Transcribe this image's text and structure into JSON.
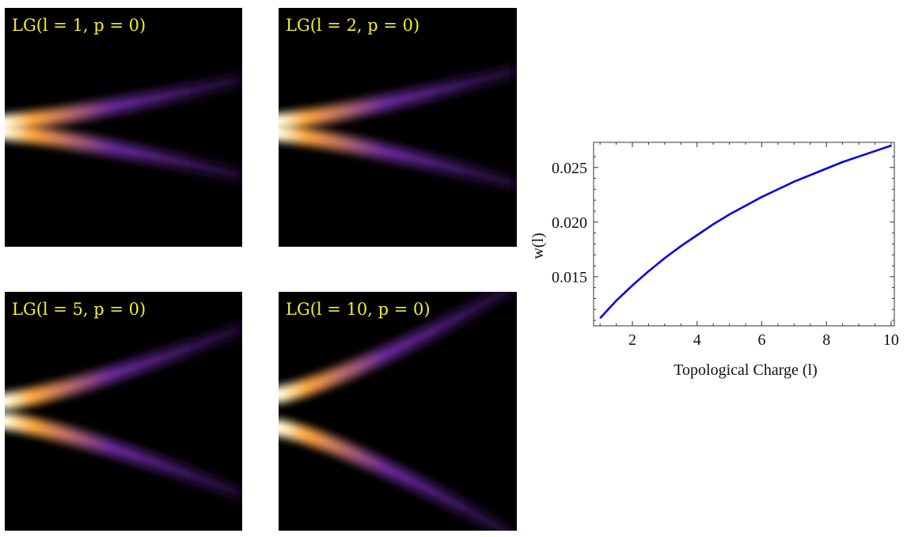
{
  "panels": [
    {
      "id": "p1",
      "label": "LG(l = 1, p = 0)",
      "l": 1,
      "p": 0
    },
    {
      "id": "p2",
      "label": "LG(l = 2, p = 0)",
      "l": 2,
      "p": 0
    },
    {
      "id": "p5",
      "label": "LG(l = 5, p = 0)",
      "l": 5,
      "p": 0
    },
    {
      "id": "p10",
      "label": "LG(l = 10, p = 0)",
      "l": 10,
      "p": 0
    }
  ],
  "colors": {
    "background": "#000000",
    "label": "#f5ef2a",
    "curve": "#0000ee",
    "beam_hot": "#ffffe0",
    "beam_warm": "#f9a23a",
    "beam_cool": "#6a2a9e"
  },
  "chart_data": {
    "type": "line",
    "title": "",
    "xlabel": "Topological Charge (l)",
    "ylabel": "w(l)",
    "xlim": [
      0.8,
      10.1
    ],
    "ylim": [
      0.0105,
      0.0273
    ],
    "xticks": [
      2,
      4,
      6,
      8,
      10
    ],
    "yticks": [
      0.015,
      0.02,
      0.025
    ],
    "xtick_labels": [
      "2",
      "4",
      "6",
      "8",
      "10"
    ],
    "ytick_labels": [
      "0.015",
      "0.020",
      "0.025"
    ],
    "grid": false,
    "series": [
      {
        "name": "",
        "x": [
          1,
          1.5,
          2,
          2.5,
          3,
          3.5,
          4,
          4.5,
          5,
          5.5,
          6,
          6.5,
          7,
          7.5,
          8,
          8.5,
          9,
          9.5,
          10
        ],
        "y": [
          0.0112,
          0.0128,
          0.0142,
          0.0155,
          0.0167,
          0.0178,
          0.0188,
          0.0198,
          0.0207,
          0.0215,
          0.0223,
          0.023,
          0.0237,
          0.0243,
          0.0249,
          0.0255,
          0.026,
          0.0265,
          0.027
        ]
      }
    ]
  }
}
